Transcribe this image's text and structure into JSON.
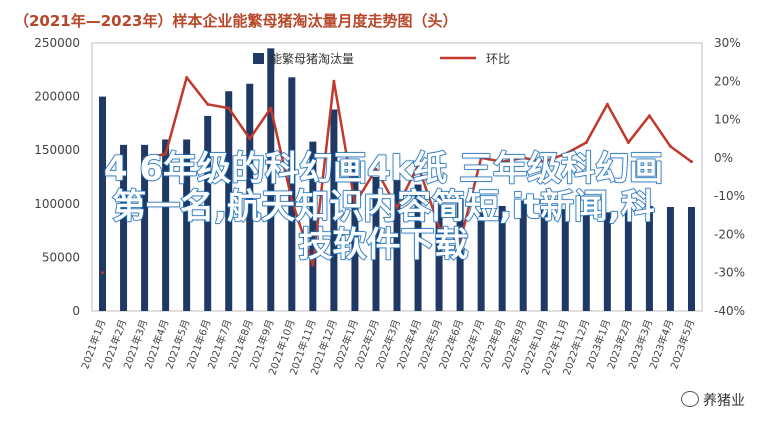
{
  "chart_data": {
    "type": "bar",
    "title": "（2021年—2023年）样本企业能繁母猪淘汰量月度走势图（头）",
    "categories": [
      "2021年1月",
      "2021年2月",
      "2021年3月",
      "2021年4月",
      "2021年5月",
      "2021年6月",
      "2021年7月",
      "2021年8月",
      "2021年9月",
      "2021年10月",
      "2021年11月",
      "2021年12月",
      "2022年1月",
      "2022年2月",
      "2022年3月",
      "2022年4月",
      "2022年5月",
      "2022年6月",
      "2022年7月",
      "2022年8月",
      "2022年9月",
      "2022年10月",
      "2022年11月",
      "2022年12月",
      "2023年1月",
      "2023年2月",
      "2023年3月",
      "2023年4月",
      "2023年5月"
    ],
    "series": [
      {
        "name": "能繁母猪淘汰量",
        "type": "bar",
        "axis": "left",
        "values": [
          200000,
          155000,
          155000,
          160000,
          160000,
          182000,
          205000,
          212000,
          245000,
          218000,
          158000,
          188000,
          140000,
          125000,
          122000,
          118000,
          112000,
          105000,
          92000,
          98000,
          103000,
          98000,
          95000,
          93000,
          92000,
          93000,
          98000,
          97000,
          97000
        ]
      },
      {
        "name": "环比",
        "type": "line",
        "axis": "right",
        "values": [
          -30,
          null,
          0,
          1,
          21,
          14,
          13,
          5,
          13,
          -11,
          -28,
          20,
          -12,
          -3,
          -13,
          -2,
          -18,
          -22,
          0,
          -1,
          0,
          -1,
          1,
          4,
          14,
          4,
          11,
          3,
          -1
        ]
      }
    ],
    "y_left": {
      "ticks": [
        "0",
        "50000",
        "100000",
        "150000",
        "200000",
        "250000"
      ],
      "ylim": [
        0,
        250000
      ]
    },
    "y_right": {
      "ticks": [
        "-40%",
        "-30%",
        "-20%",
        "-10%",
        "0%",
        "10%",
        "20%",
        "30%"
      ],
      "ylim": [
        -40,
        30
      ]
    },
    "bar_color": "#1f3864",
    "line_color": "#c0392b",
    "legend_position": "top-center"
  },
  "overlay": {
    "line1": "4 6年级的科幻画4k纸 三年级科幻画",
    "line2": "第一名,航天知识内容简短,it新闻,科",
    "line3": "技软件下载"
  },
  "watermark": {
    "text": "养猪业",
    "icon": "wechat-icon"
  }
}
